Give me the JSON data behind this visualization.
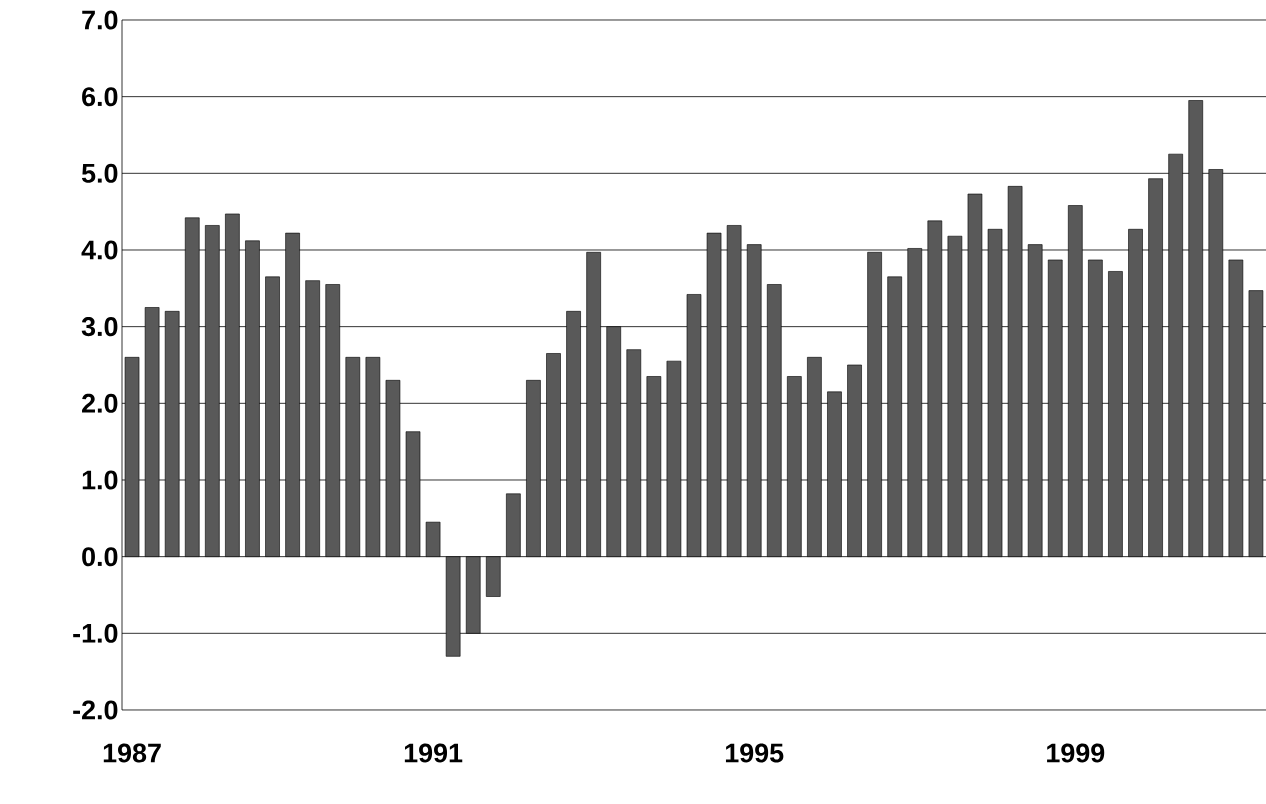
{
  "chart_data": {
    "type": "bar",
    "categories": [
      "1987",
      null,
      null,
      null,
      null,
      null,
      null,
      null,
      null,
      null,
      null,
      null,
      null,
      null,
      null,
      "1991",
      null,
      null,
      null,
      null,
      null,
      null,
      null,
      null,
      null,
      null,
      null,
      null,
      null,
      null,
      null,
      "1995",
      null,
      null,
      null,
      null,
      null,
      null,
      null,
      null,
      null,
      null,
      null,
      null,
      null,
      null,
      null,
      "1999",
      null,
      null,
      null,
      null,
      null,
      null,
      null,
      null,
      null
    ],
    "values": [
      2.6,
      3.25,
      3.2,
      4.42,
      4.32,
      4.47,
      4.12,
      3.65,
      4.22,
      3.6,
      3.55,
      2.6,
      2.6,
      2.3,
      1.63,
      0.45,
      -1.3,
      -1.0,
      -0.52,
      0.82,
      2.3,
      2.65,
      3.2,
      3.97,
      3.0,
      2.7,
      2.35,
      2.55,
      3.42,
      4.22,
      4.32,
      4.07,
      3.55,
      2.35,
      2.6,
      2.15,
      2.5,
      3.97,
      3.65,
      4.02,
      4.38,
      4.18,
      4.73,
      4.27,
      4.83,
      4.07,
      3.87,
      4.58,
      3.87,
      3.72,
      4.27,
      4.93,
      5.25,
      5.95,
      5.05,
      3.87,
      3.47
    ],
    "color": "#595959",
    "ylim": [
      -2.0,
      7.0
    ],
    "yticks": [
      {
        "value": -2,
        "label": "-2.0"
      },
      {
        "value": -1,
        "label": "-1.0"
      },
      {
        "value": 0,
        "label": "0.0"
      },
      {
        "value": 1,
        "label": "1.0"
      },
      {
        "value": 2,
        "label": "2.0"
      },
      {
        "value": 3,
        "label": "3.0"
      },
      {
        "value": 4,
        "label": "4.0"
      },
      {
        "value": 5,
        "label": "5.0"
      },
      {
        "value": 6,
        "label": "6.0"
      },
      {
        "value": 7,
        "label": "7.0"
      }
    ],
    "grid": "y"
  }
}
